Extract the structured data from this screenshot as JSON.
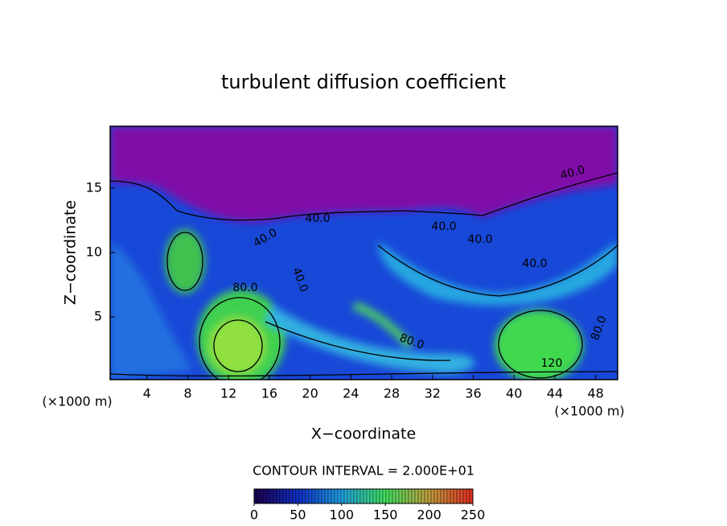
{
  "chart_data": {
    "type": "contour",
    "title": "turbulent diffusion coefficient",
    "xlabel": "X−coordinate",
    "ylabel": "Z−coordinate",
    "unit": "(×1000 m)",
    "xlim": [
      0,
      50
    ],
    "xticks": [
      4,
      8,
      12,
      16,
      20,
      24,
      28,
      32,
      36,
      40,
      44,
      48
    ],
    "ylim": [
      0,
      20
    ],
    "yticks": [
      5,
      10,
      15
    ],
    "contour_labels": [
      "40.0",
      "40.0",
      "40.0",
      "40.0",
      "40.0",
      "40.0",
      "40.0",
      "80.0",
      "80.0",
      "120",
      "80.0"
    ],
    "colorbar": {
      "title": "CONTOUR INTERVAL = 2.000E+01",
      "lim": [
        0,
        250
      ],
      "ticks": [
        0,
        50,
        100,
        150,
        200,
        250
      ],
      "colors": [
        "#1a0050",
        "#1030c8",
        "#20a0e0",
        "#40e060",
        "#c0a040",
        "#e03020"
      ]
    }
  }
}
